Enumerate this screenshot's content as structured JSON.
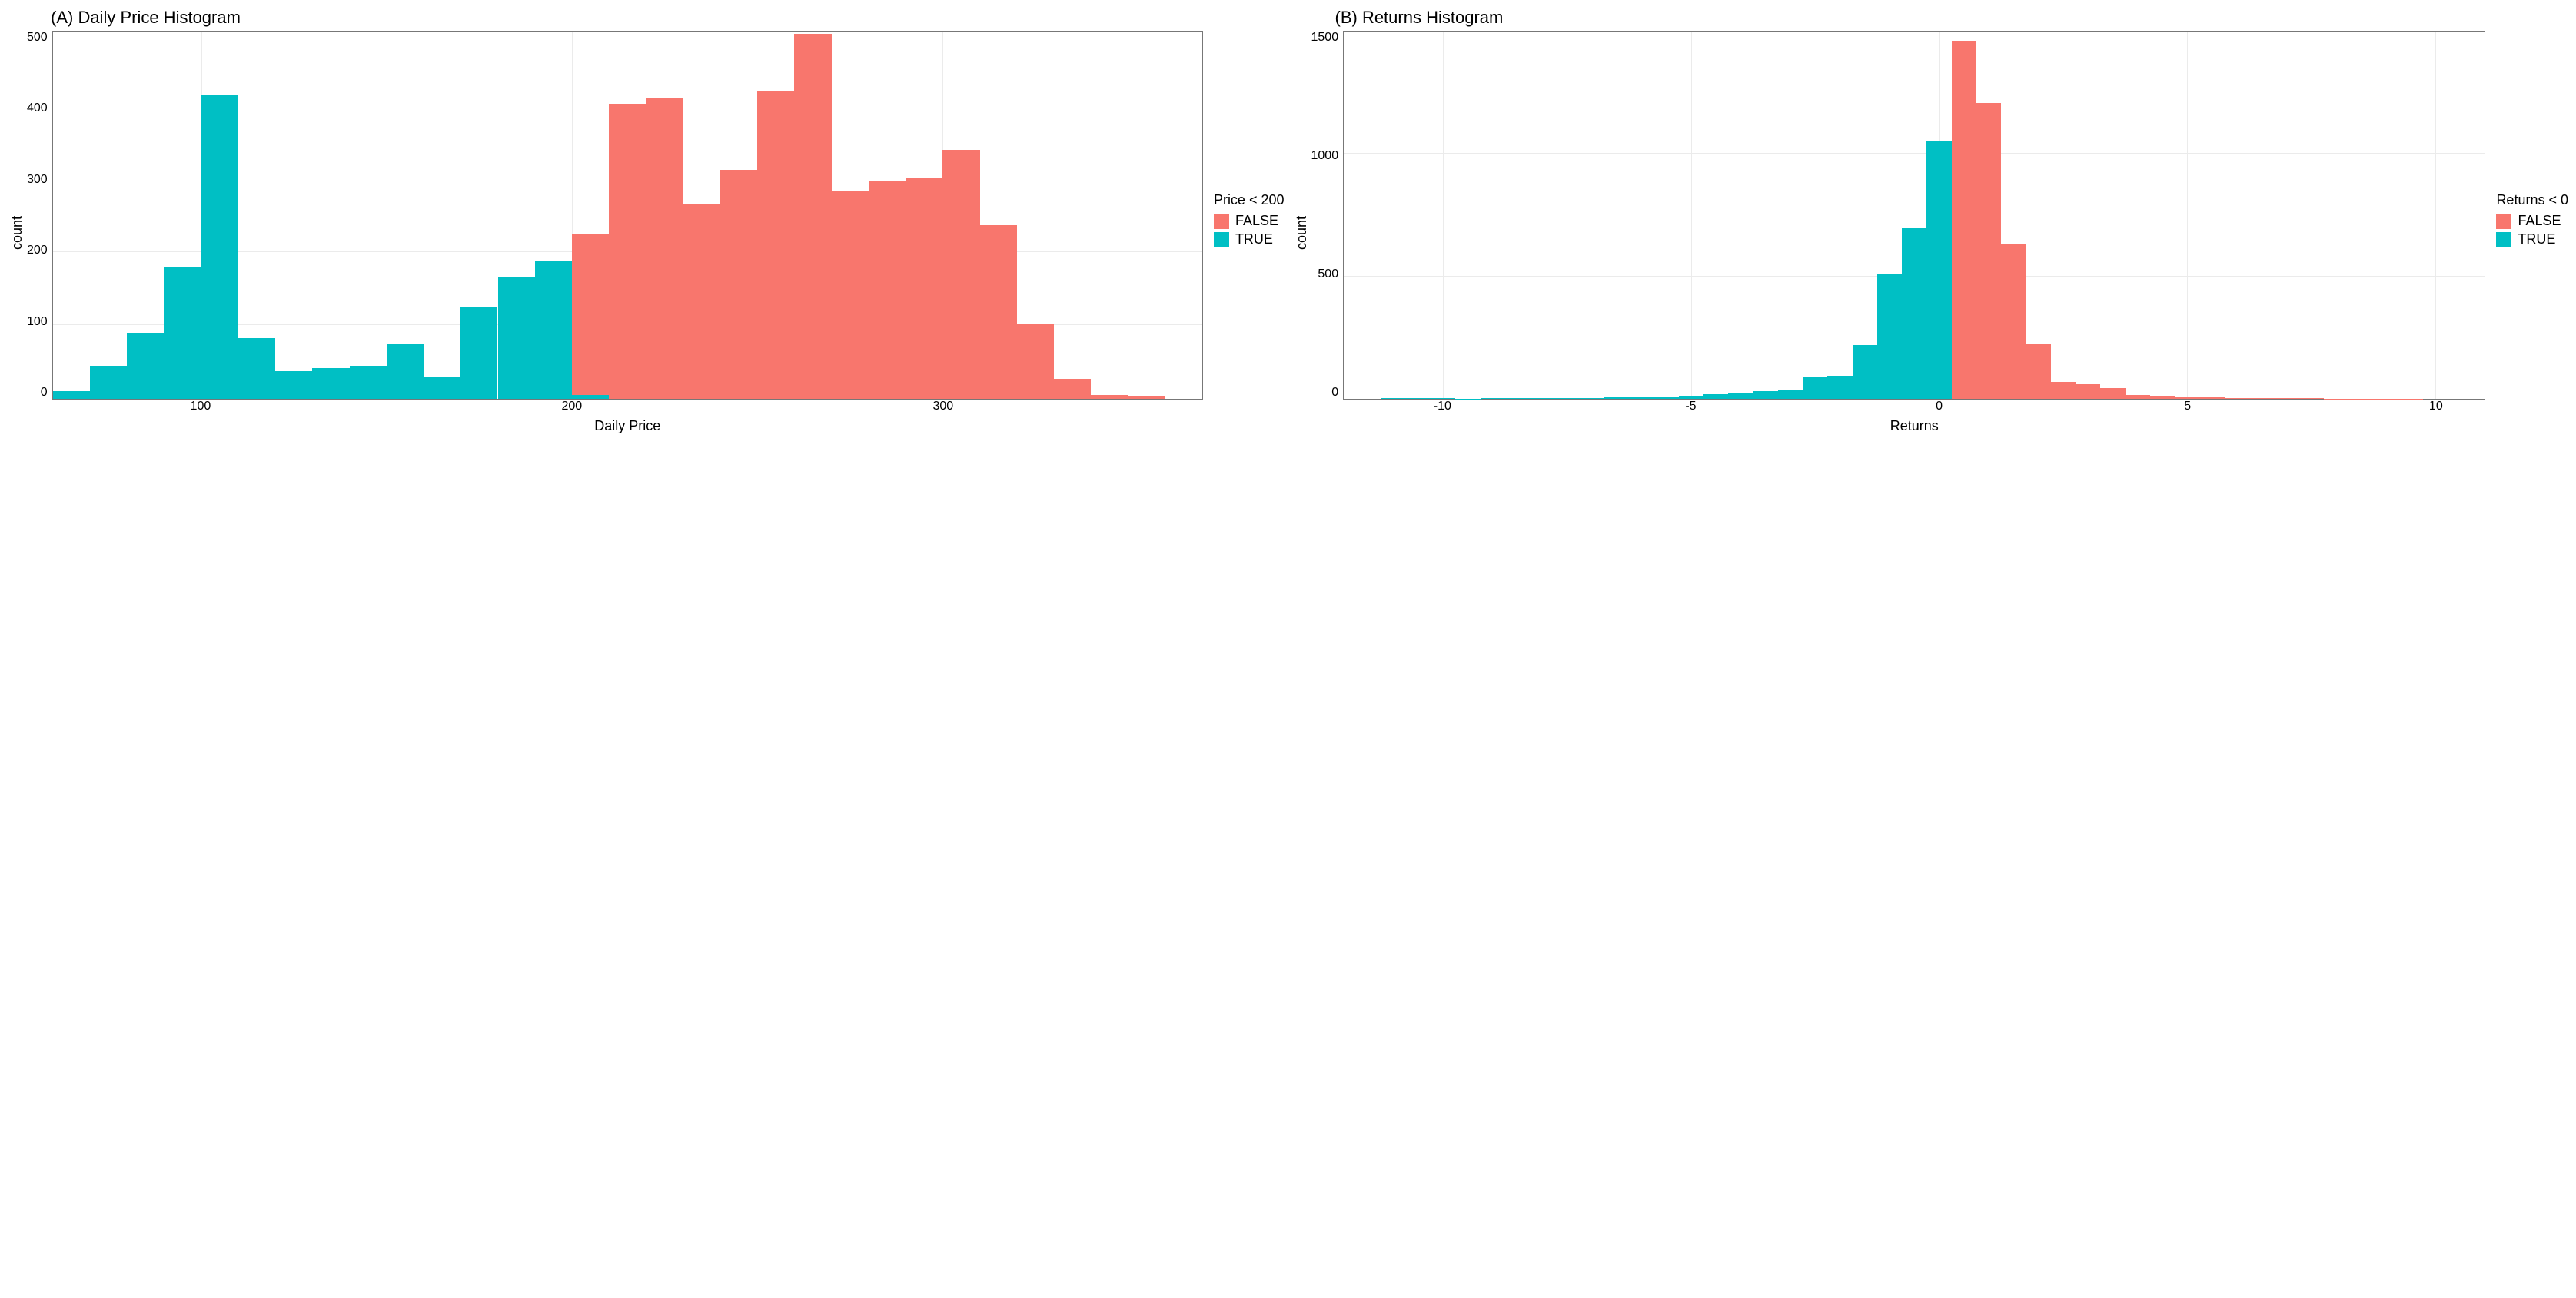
{
  "colors": {
    "false": "#f8766d",
    "true": "#00bfc4",
    "grid": "#ebebeb",
    "border": "#777777",
    "bg": "#ffffff",
    "text": "#000000"
  },
  "font": {
    "family": "Arial",
    "title_size_pt": 16,
    "axis_size_pt": 13,
    "tick_size_pt": 12
  },
  "panelA": {
    "type": "histogram",
    "title": "(A) Daily Price Histogram",
    "xlabel": "Daily Price",
    "ylabel": "count",
    "xlim": [
      60,
      370
    ],
    "ylim": [
      0,
      500
    ],
    "xtick_step": 100,
    "xticks": [
      100,
      200,
      300
    ],
    "ytick_step": 100,
    "yticks": [
      0,
      100,
      200,
      300,
      400,
      500
    ],
    "bin_width": 10,
    "bins": [
      {
        "x": 65,
        "count": 10,
        "series": "true"
      },
      {
        "x": 75,
        "count": 45,
        "series": "true"
      },
      {
        "x": 85,
        "count": 90,
        "series": "true"
      },
      {
        "x": 95,
        "count": 178,
        "series": "true"
      },
      {
        "x": 105,
        "count": 412,
        "series": "true"
      },
      {
        "x": 115,
        "count": 82,
        "series": "true"
      },
      {
        "x": 125,
        "count": 38,
        "series": "true"
      },
      {
        "x": 135,
        "count": 42,
        "series": "true"
      },
      {
        "x": 145,
        "count": 45,
        "series": "true"
      },
      {
        "x": 155,
        "count": 75,
        "series": "true"
      },
      {
        "x": 165,
        "count": 30,
        "series": "true"
      },
      {
        "x": 175,
        "count": 125,
        "series": "true"
      },
      {
        "x": 185,
        "count": 165,
        "series": "true"
      },
      {
        "x": 195,
        "count": 188,
        "series": "true"
      },
      {
        "x": 205,
        "count": 5,
        "series": "true"
      },
      {
        "x": 205,
        "count": 218,
        "series": "false"
      },
      {
        "x": 215,
        "count": 400,
        "series": "false"
      },
      {
        "x": 225,
        "count": 407,
        "series": "false"
      },
      {
        "x": 235,
        "count": 265,
        "series": "false"
      },
      {
        "x": 245,
        "count": 310,
        "series": "false"
      },
      {
        "x": 255,
        "count": 418,
        "series": "false"
      },
      {
        "x": 265,
        "count": 495,
        "series": "false"
      },
      {
        "x": 275,
        "count": 282,
        "series": "false"
      },
      {
        "x": 285,
        "count": 295,
        "series": "false"
      },
      {
        "x": 295,
        "count": 300,
        "series": "false"
      },
      {
        "x": 305,
        "count": 337,
        "series": "false"
      },
      {
        "x": 315,
        "count": 235,
        "series": "false"
      },
      {
        "x": 325,
        "count": 102,
        "series": "false"
      },
      {
        "x": 335,
        "count": 27,
        "series": "false"
      },
      {
        "x": 345,
        "count": 5,
        "series": "false"
      },
      {
        "x": 355,
        "count": 4,
        "series": "false"
      }
    ],
    "legend": {
      "title": "Price < 200",
      "items": [
        {
          "label": "FALSE",
          "color_key": "false"
        },
        {
          "label": "TRUE",
          "color_key": "true"
        }
      ]
    }
  },
  "panelB": {
    "type": "histogram",
    "title": "(B) Returns Histogram",
    "xlabel": "Returns",
    "ylabel": "count",
    "xlim": [
      -12,
      11
    ],
    "ylim": [
      0,
      1500
    ],
    "xtick_step": 5,
    "xticks": [
      -10,
      -5,
      0,
      5,
      10
    ],
    "ytick_step": 500,
    "yticks": [
      0,
      500,
      1000,
      1500
    ],
    "bin_width": 0.5,
    "bins": [
      {
        "x": -11.0,
        "count": 2,
        "series": "true"
      },
      {
        "x": -10.5,
        "count": 3,
        "series": "true"
      },
      {
        "x": -10.0,
        "count": 2,
        "series": "true"
      },
      {
        "x": -9.5,
        "count": 1,
        "series": "true"
      },
      {
        "x": -9.0,
        "count": 2,
        "series": "true"
      },
      {
        "x": -8.5,
        "count": 2,
        "series": "true"
      },
      {
        "x": -8.0,
        "count": 3,
        "series": "true"
      },
      {
        "x": -7.5,
        "count": 3,
        "series": "true"
      },
      {
        "x": -7.0,
        "count": 4,
        "series": "true"
      },
      {
        "x": -6.5,
        "count": 5,
        "series": "true"
      },
      {
        "x": -6.0,
        "count": 6,
        "series": "true"
      },
      {
        "x": -5.5,
        "count": 8,
        "series": "true"
      },
      {
        "x": -5.0,
        "count": 12,
        "series": "true"
      },
      {
        "x": -4.5,
        "count": 18,
        "series": "true"
      },
      {
        "x": -4.0,
        "count": 24,
        "series": "true"
      },
      {
        "x": -3.5,
        "count": 30,
        "series": "true"
      },
      {
        "x": -3.0,
        "count": 38,
        "series": "true"
      },
      {
        "x": -2.5,
        "count": 88,
        "series": "true"
      },
      {
        "x": -2.0,
        "count": 95,
        "series": "true"
      },
      {
        "x": -1.5,
        "count": 220,
        "series": "true"
      },
      {
        "x": -1.0,
        "count": 510,
        "series": "true"
      },
      {
        "x": -0.5,
        "count": 693,
        "series": "true"
      },
      {
        "x": 0.0,
        "count": 1047,
        "series": "true"
      },
      {
        "x": 0.5,
        "count": 1455,
        "series": "false"
      },
      {
        "x": 1.0,
        "count": 1203,
        "series": "false"
      },
      {
        "x": 1.5,
        "count": 630,
        "series": "false"
      },
      {
        "x": 2.0,
        "count": 225,
        "series": "false"
      },
      {
        "x": 2.5,
        "count": 70,
        "series": "false"
      },
      {
        "x": 3.0,
        "count": 60,
        "series": "false"
      },
      {
        "x": 3.5,
        "count": 45,
        "series": "false"
      },
      {
        "x": 4.0,
        "count": 15,
        "series": "false"
      },
      {
        "x": 4.5,
        "count": 12,
        "series": "false"
      },
      {
        "x": 5.0,
        "count": 8,
        "series": "false"
      },
      {
        "x": 5.5,
        "count": 6,
        "series": "false"
      },
      {
        "x": 6.0,
        "count": 4,
        "series": "false"
      },
      {
        "x": 6.5,
        "count": 3,
        "series": "false"
      },
      {
        "x": 7.0,
        "count": 3,
        "series": "false"
      },
      {
        "x": 7.5,
        "count": 2,
        "series": "false"
      },
      {
        "x": 8.0,
        "count": 1,
        "series": "false"
      },
      {
        "x": 8.5,
        "count": 1,
        "series": "false"
      },
      {
        "x": 9.0,
        "count": 1,
        "series": "false"
      },
      {
        "x": 9.5,
        "count": 1,
        "series": "false"
      }
    ],
    "legend": {
      "title": "Returns < 0",
      "items": [
        {
          "label": "FALSE",
          "color_key": "false"
        },
        {
          "label": "TRUE",
          "color_key": "true"
        }
      ]
    }
  }
}
